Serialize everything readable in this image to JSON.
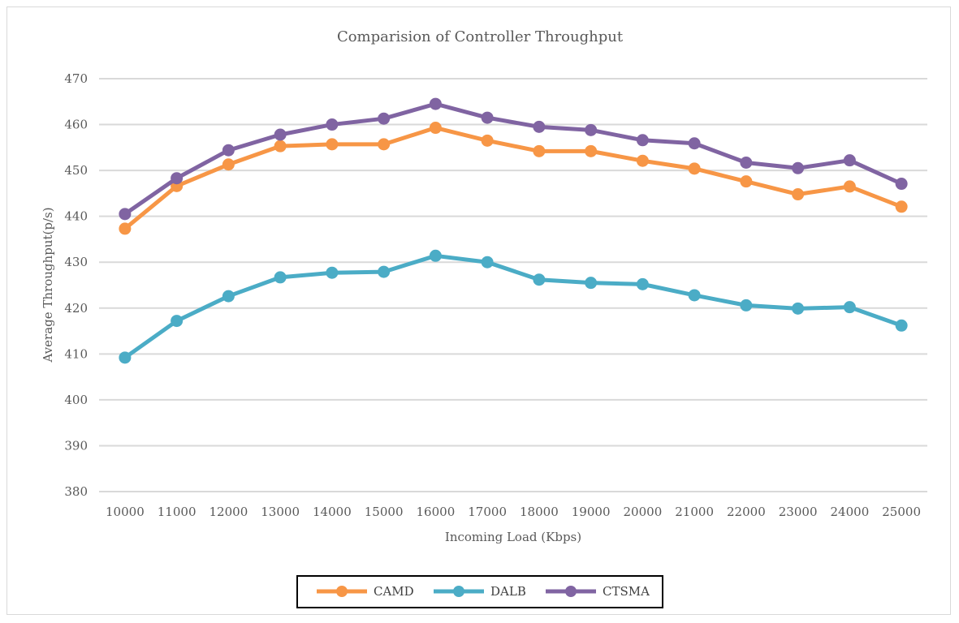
{
  "chart_data": {
    "type": "line",
    "title": "Comparision of Controller Throughput",
    "xlabel": "Incoming Load (Kbps)",
    "ylabel": "Average Throughput(p/s)",
    "ylim": [
      380,
      470
    ],
    "ytick_step": 10,
    "grid": true,
    "legend_position": "bottom",
    "categories": [
      "10000",
      "11000",
      "12000",
      "13000",
      "14000",
      "15000",
      "16000",
      "17000",
      "18000",
      "19000",
      "20000",
      "21000",
      "22000",
      "23000",
      "24000",
      "25000"
    ],
    "series": [
      {
        "name": "CAMD",
        "color": "#f79646",
        "values": [
          437.3,
          446.6,
          451.3,
          455.3,
          455.7,
          455.7,
          459.3,
          456.5,
          454.2,
          454.2,
          452.1,
          450.4,
          447.6,
          444.8,
          446.5,
          442.1
        ]
      },
      {
        "name": "DALB",
        "color": "#4bacc6",
        "values": [
          409.2,
          417.2,
          422.6,
          426.7,
          427.7,
          427.9,
          431.4,
          430.0,
          426.2,
          425.5,
          425.2,
          422.8,
          420.6,
          419.9,
          420.2,
          416.2
        ]
      },
      {
        "name": "CTSMA",
        "color": "#8064a2",
        "values": [
          440.5,
          448.3,
          454.4,
          457.8,
          460.0,
          461.3,
          464.5,
          461.5,
          459.5,
          458.8,
          456.6,
          455.9,
          451.7,
          450.5,
          452.2,
          447.1
        ]
      }
    ]
  }
}
